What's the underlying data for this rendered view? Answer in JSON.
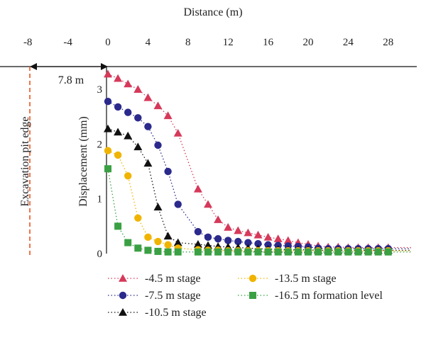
{
  "chart_data": {
    "type": "scatter",
    "xlabel": "Distance (m)",
    "ylabel": "Displacement (mm)",
    "xlim": [
      -9,
      30
    ],
    "ylim": [
      0,
      3.4
    ],
    "x_ticks": [
      -8,
      -4,
      0,
      4,
      8,
      12,
      16,
      20,
      24,
      28
    ],
    "y_ticks": [
      0,
      1,
      2,
      3
    ],
    "grid": false,
    "legend_position": "bottom",
    "annotations": {
      "pit_edge_label": "Excavation pit edge",
      "pit_edge_x": -7.8,
      "offset_label": "7.8 m",
      "pit_edge_color": "#e8541e"
    },
    "series": [
      {
        "name": "-4.5 m stage",
        "marker": "triangle",
        "color": "#d6395a",
        "x": [
          0,
          1,
          2,
          3,
          4,
          5,
          6,
          7,
          9,
          10,
          11,
          12,
          13,
          14,
          15,
          16,
          17,
          18,
          19,
          20,
          21,
          22,
          23,
          24,
          25,
          26,
          27,
          28
        ],
        "y": [
          3.28,
          3.2,
          3.1,
          3.0,
          2.85,
          2.7,
          2.52,
          2.2,
          1.18,
          0.9,
          0.62,
          0.48,
          0.42,
          0.38,
          0.34,
          0.3,
          0.27,
          0.24,
          0.2,
          0.17,
          0.14,
          0.12,
          0.12,
          0.11,
          0.11,
          0.11,
          0.11,
          0.11
        ]
      },
      {
        "name": "-7.5 m stage",
        "marker": "circle",
        "color": "#2b2a8c",
        "x": [
          0,
          1,
          2,
          3,
          4,
          5,
          6,
          7,
          9,
          10,
          11,
          12,
          13,
          14,
          15,
          16,
          17,
          18,
          19,
          20,
          21,
          22,
          23,
          24,
          25,
          26,
          27,
          28
        ],
        "y": [
          2.78,
          2.68,
          2.58,
          2.48,
          2.32,
          1.98,
          1.5,
          0.9,
          0.4,
          0.3,
          0.27,
          0.24,
          0.22,
          0.2,
          0.18,
          0.16,
          0.15,
          0.14,
          0.13,
          0.12,
          0.1,
          0.09,
          0.09,
          0.09,
          0.09,
          0.09,
          0.09,
          0.09
        ]
      },
      {
        "name": "-10.5 m stage",
        "marker": "triangle",
        "color": "#111111",
        "x": [
          0,
          1,
          2,
          3,
          4,
          5,
          6,
          7,
          9,
          10,
          11,
          12,
          13,
          14,
          15,
          16,
          17,
          18,
          19,
          20,
          21,
          22,
          23,
          24,
          25,
          26,
          27,
          28
        ],
        "y": [
          2.28,
          2.22,
          2.15,
          1.95,
          1.65,
          0.85,
          0.32,
          0.2,
          0.17,
          0.15,
          0.13,
          0.12,
          0.11,
          0.1,
          0.09,
          0.08,
          0.08,
          0.07,
          0.07,
          0.07,
          0.06,
          0.06,
          0.06,
          0.06,
          0.06,
          0.06,
          0.06,
          0.06
        ]
      },
      {
        "name": "-13.5 m stage",
        "marker": "circle",
        "color": "#f0b400",
        "x": [
          0,
          1,
          2,
          3,
          4,
          5,
          6,
          7,
          9,
          10,
          11,
          12,
          13,
          14,
          15,
          16,
          17,
          18,
          19,
          20,
          21,
          22,
          23,
          24,
          25,
          26,
          27,
          28
        ],
        "y": [
          1.88,
          1.8,
          1.42,
          0.65,
          0.3,
          0.22,
          0.16,
          0.1,
          0.07,
          0.06,
          0.06,
          0.05,
          0.05,
          0.05,
          0.05,
          0.05,
          0.05,
          0.05,
          0.05,
          0.05,
          0.05,
          0.05,
          0.05,
          0.05,
          0.05,
          0.05,
          0.05,
          0.05
        ]
      },
      {
        "name": "-16.5 m formation level",
        "marker": "square",
        "color": "#3aa043",
        "x": [
          0,
          1,
          2,
          3,
          4,
          5,
          6,
          7,
          9,
          10,
          11,
          12,
          13,
          14,
          15,
          16,
          17,
          18,
          19,
          20,
          21,
          22,
          23,
          24,
          25,
          26,
          27,
          28
        ],
        "y": [
          1.55,
          0.5,
          0.2,
          0.1,
          0.06,
          0.04,
          0.03,
          0.03,
          0.03,
          0.03,
          0.03,
          0.03,
          0.03,
          0.03,
          0.03,
          0.03,
          0.03,
          0.03,
          0.03,
          0.03,
          0.03,
          0.03,
          0.03,
          0.03,
          0.03,
          0.03,
          0.03,
          0.03
        ]
      }
    ]
  }
}
